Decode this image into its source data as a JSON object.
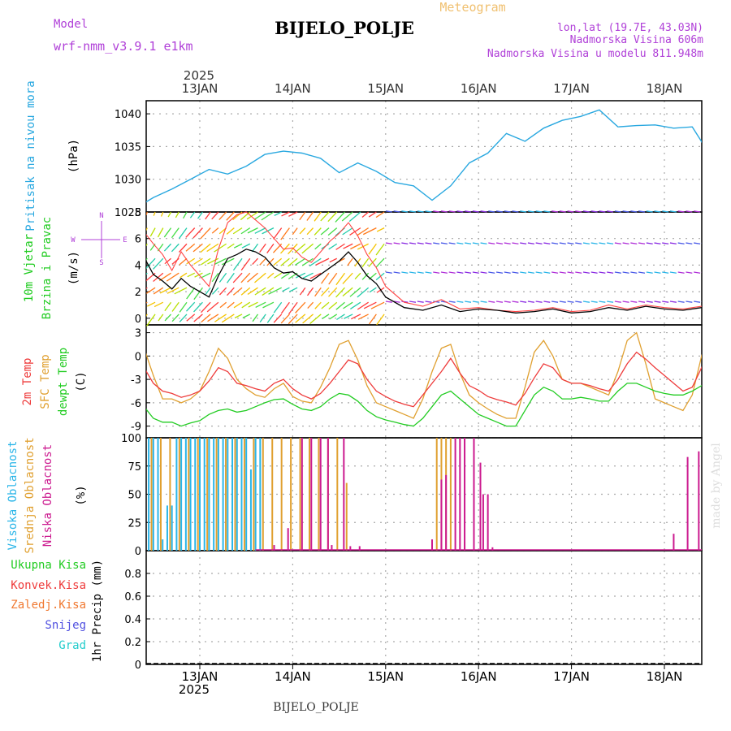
{
  "header": {
    "model_label": "Model",
    "model_name": "wrf-nmm_v3.9.1 e1km",
    "title": "BIJELO_POLJE",
    "product": "Meteogram",
    "lonlat": "lon,lat (19.7E, 43.03N)",
    "altitude": "Nadmorska Visina 606m",
    "model_altitude": "Nadmorska Visina u modelu 811.948m",
    "year_top": "2025",
    "year_bottom": "2025",
    "footer": "BIJELO_POLJE",
    "watermark": "made by Angel"
  },
  "colors": {
    "pressure": "#29a8e0",
    "t2m": "#ee3b3b",
    "sfc": "#e0a030",
    "dewpt": "#22cc22",
    "high_cloud": "#2ab5e8",
    "mid_cloud": "#e0a030",
    "low_cloud": "#cc1a8f",
    "wind_speed": "#000000",
    "wind_gust": "#ff4444",
    "purple": "#b040d8"
  },
  "chart_data": [
    {
      "type": "line",
      "panel": "pressure",
      "ylabel_lines": [
        "Pritisak na nivou mora",
        "(hPa)"
      ],
      "ylim": [
        1025,
        1042
      ],
      "yticks": [
        1025,
        1030,
        1035,
        1040
      ],
      "x_days": [
        "13JAN",
        "14JAN",
        "15JAN",
        "16JAN",
        "17JAN",
        "18JAN"
      ],
      "x": [
        -0.7,
        -0.5,
        -0.3,
        -0.1,
        0.1,
        0.3,
        0.5,
        0.7,
        0.9,
        1.1,
        1.3,
        1.5,
        1.7,
        1.9,
        2.1,
        2.3,
        2.5,
        2.7,
        2.9,
        3.1,
        3.3,
        3.5,
        3.7,
        3.9,
        4.1,
        4.3,
        4.5,
        4.7,
        4.9,
        5.1,
        5.3,
        5.5
      ],
      "series": [
        {
          "values": [
            1025.5,
            1027.2,
            1028.5,
            1030.0,
            1031.5,
            1030.8,
            1032.0,
            1033.8,
            1034.3,
            1034.0,
            1033.2,
            1031.0,
            1032.5,
            1031.2,
            1029.5,
            1029.0,
            1026.8,
            1029.0,
            1032.5,
            1034.0,
            1037.0,
            1035.8,
            1037.8,
            1039.0,
            1039.6,
            1040.6,
            1038.0,
            1038.2,
            1038.3,
            1037.8,
            1038.0,
            1033.5
          ]
        }
      ]
    },
    {
      "type": "line",
      "panel": "wind",
      "ylabel_lines": [
        "10m Vjetar",
        "Brzina i Pravac",
        "(m/s)"
      ],
      "compass": [
        "N",
        "W",
        "E",
        "S"
      ],
      "ylim": [
        -0.5,
        8
      ],
      "yticks": [
        0,
        2,
        4,
        6,
        8
      ],
      "x": [
        -0.7,
        -0.6,
        -0.5,
        -0.4,
        -0.3,
        -0.2,
        -0.1,
        0.0,
        0.1,
        0.2,
        0.3,
        0.4,
        0.5,
        0.6,
        0.7,
        0.8,
        0.9,
        1.0,
        1.1,
        1.2,
        1.3,
        1.4,
        1.5,
        1.6,
        1.7,
        1.8,
        1.9,
        2.0,
        2.2,
        2.4,
        2.6,
        2.8,
        3.0,
        3.2,
        3.4,
        3.6,
        3.8,
        4.0,
        4.2,
        4.4,
        4.6,
        4.8,
        5.0,
        5.2,
        5.4,
        5.5
      ],
      "series": [
        {
          "name": "speed",
          "values": [
            3.5,
            4.6,
            3.3,
            2.8,
            2.2,
            3.0,
            2.4,
            2.0,
            1.6,
            3.2,
            4.5,
            4.8,
            5.2,
            5.0,
            4.6,
            3.8,
            3.4,
            3.5,
            3.0,
            2.8,
            3.3,
            3.8,
            4.3,
            5.0,
            4.2,
            3.2,
            2.6,
            1.6,
            0.8,
            0.6,
            1.0,
            0.5,
            0.7,
            0.6,
            0.4,
            0.5,
            0.7,
            0.4,
            0.5,
            0.8,
            0.6,
            0.9,
            0.7,
            0.6,
            0.8,
            0.7
          ]
        },
        {
          "name": "gust",
          "values": [
            5.0,
            6.5,
            5.6,
            4.8,
            3.6,
            5.0,
            4.0,
            3.2,
            2.4,
            5.2,
            7.2,
            7.8,
            8.0,
            7.4,
            6.8,
            6.0,
            5.2,
            5.3,
            4.6,
            4.2,
            5.0,
            5.8,
            6.4,
            7.2,
            6.2,
            4.8,
            3.8,
            2.4,
            1.2,
            0.9,
            1.4,
            0.7,
            0.8,
            0.6,
            0.5,
            0.6,
            0.8,
            0.5,
            0.6,
            1.0,
            0.7,
            1.0,
            0.8,
            0.7,
            0.9,
            0.8
          ]
        }
      ]
    },
    {
      "type": "line",
      "panel": "temperature",
      "ylabel_lines": [
        "2m Temp",
        "SFC Temp",
        "dewpt Temp",
        "(C)"
      ],
      "ylim": [
        -10.5,
        4
      ],
      "yticks": [
        -9,
        -6,
        -3,
        0,
        3
      ],
      "x": [
        -0.7,
        -0.6,
        -0.5,
        -0.4,
        -0.3,
        -0.2,
        -0.1,
        0.0,
        0.1,
        0.2,
        0.3,
        0.4,
        0.5,
        0.6,
        0.7,
        0.8,
        0.9,
        1.0,
        1.1,
        1.2,
        1.3,
        1.4,
        1.5,
        1.6,
        1.7,
        1.8,
        1.9,
        2.0,
        2.1,
        2.2,
        2.3,
        2.4,
        2.5,
        2.6,
        2.7,
        2.8,
        2.9,
        3.0,
        3.1,
        3.2,
        3.3,
        3.4,
        3.5,
        3.6,
        3.7,
        3.8,
        3.9,
        4.0,
        4.1,
        4.2,
        4.3,
        4.4,
        4.5,
        4.6,
        4.7,
        4.8,
        4.9,
        5.0,
        5.1,
        5.2,
        5.3,
        5.4,
        5.5
      ],
      "series": [
        {
          "name": "2m Temp",
          "values": [
            -3.0,
            -1.5,
            -3.5,
            -4.5,
            -4.8,
            -5.3,
            -5.0,
            -4.5,
            -3.2,
            -1.5,
            -2.0,
            -3.5,
            -3.8,
            -4.2,
            -4.5,
            -3.5,
            -3.0,
            -4.2,
            -5.0,
            -5.5,
            -4.8,
            -3.5,
            -2.0,
            -0.5,
            -1.0,
            -3.0,
            -4.5,
            -5.2,
            -5.8,
            -6.2,
            -6.5,
            -5.0,
            -3.5,
            -2.0,
            -0.3,
            -2.2,
            -3.8,
            -4.4,
            -5.2,
            -5.6,
            -5.9,
            -6.3,
            -4.8,
            -2.8,
            -1.0,
            -1.5,
            -3.0,
            -3.5,
            -3.5,
            -3.8,
            -4.2,
            -4.5,
            -3.0,
            -1.0,
            0.5,
            -0.4,
            -1.5,
            -2.5,
            -3.5,
            -4.5,
            -4.0,
            -1.5,
            0.6
          ]
        },
        {
          "name": "SFC Temp",
          "values": [
            -2.5,
            1.0,
            -2.5,
            -5.5,
            -5.5,
            -6.0,
            -5.5,
            -4.5,
            -2.0,
            1.0,
            -0.3,
            -3.0,
            -4.2,
            -5.0,
            -5.3,
            -4.2,
            -3.5,
            -5.2,
            -5.8,
            -6.0,
            -4.0,
            -1.5,
            1.5,
            2.0,
            -0.5,
            -3.8,
            -6.0,
            -6.5,
            -7.0,
            -7.5,
            -8.0,
            -5.5,
            -2.0,
            1.0,
            1.5,
            -2.2,
            -5.0,
            -6.0,
            -6.8,
            -7.5,
            -8.0,
            -8.0,
            -4.0,
            0.5,
            2.0,
            0.0,
            -3.0,
            -3.5,
            -3.5,
            -4.0,
            -4.5,
            -5.0,
            -2.0,
            2.0,
            3.0,
            -1.0,
            -5.5,
            -6.0,
            -6.5,
            -7.0,
            -5.0,
            0.0,
            3.5
          ]
        },
        {
          "name": "dewpt Temp",
          "values": [
            -7.5,
            -6.5,
            -8.0,
            -8.5,
            -8.5,
            -9.0,
            -8.6,
            -8.3,
            -7.5,
            -7.0,
            -6.8,
            -7.2,
            -7.0,
            -6.5,
            -6.0,
            -5.6,
            -5.5,
            -6.2,
            -6.8,
            -7.0,
            -6.5,
            -5.5,
            -4.8,
            -5.0,
            -5.8,
            -7.0,
            -7.8,
            -8.2,
            -8.5,
            -8.8,
            -9.0,
            -8.0,
            -6.5,
            -5.0,
            -4.5,
            -5.5,
            -6.5,
            -7.5,
            -8.0,
            -8.5,
            -9.0,
            -9.0,
            -7.0,
            -5.0,
            -4.0,
            -4.5,
            -5.5,
            -5.5,
            -5.3,
            -5.5,
            -5.8,
            -5.8,
            -4.5,
            -3.5,
            -3.5,
            -4.0,
            -4.5,
            -4.8,
            -5.0,
            -5.0,
            -4.5,
            -3.8,
            -3.3
          ]
        }
      ]
    },
    {
      "type": "bar",
      "panel": "cloud",
      "ylabel_lines": [
        "Visoka Oblacnost",
        "Srednja Oblacnost",
        "Niska Oblacnost",
        "(%)"
      ],
      "ylim": [
        0,
        100
      ],
      "yticks": [
        0,
        25,
        50,
        75,
        100
      ],
      "high_x": [
        -0.65,
        -0.6,
        -0.55,
        -0.5,
        -0.45,
        -0.4,
        -0.35,
        -0.3,
        -0.25,
        -0.2,
        -0.15,
        -0.1,
        -0.05,
        0.0,
        0.05,
        0.1,
        0.15,
        0.2,
        0.25,
        0.3,
        0.35,
        0.4,
        0.45,
        0.5,
        0.55,
        0.6,
        0.65
      ],
      "high_v": [
        100,
        100,
        100,
        100,
        100,
        10,
        40,
        40,
        100,
        100,
        100,
        100,
        100,
        100,
        100,
        100,
        100,
        100,
        100,
        100,
        100,
        100,
        100,
        100,
        72,
        100,
        100
      ],
      "mid_x": [
        -0.62,
        -0.52,
        -0.42,
        -0.32,
        -0.22,
        -0.12,
        -0.02,
        0.08,
        0.18,
        0.28,
        0.38,
        0.48,
        0.58,
        0.68,
        0.78,
        0.88,
        0.98,
        1.08,
        1.18,
        1.28,
        1.38,
        1.48,
        1.58,
        2.55,
        2.6,
        2.65,
        2.7,
        2.85
      ],
      "mid_v": [
        100,
        100,
        100,
        100,
        100,
        100,
        100,
        100,
        100,
        100,
        100,
        100,
        100,
        100,
        100,
        100,
        100,
        100,
        100,
        100,
        100,
        100,
        60,
        100,
        100,
        100,
        100,
        8
      ],
      "low_x": [
        0.8,
        0.95,
        1.1,
        1.2,
        1.3,
        1.38,
        1.42,
        1.55,
        1.62,
        1.72,
        2.5,
        2.6,
        2.65,
        2.75,
        2.8,
        2.85,
        2.95,
        3.02,
        3.05,
        3.1,
        3.15,
        5.1,
        5.25,
        5.37,
        5.42
      ],
      "low_v": [
        5,
        20,
        100,
        100,
        100,
        100,
        5,
        100,
        4,
        4,
        10,
        63,
        67,
        100,
        100,
        100,
        100,
        78,
        50,
        50,
        3,
        15,
        83,
        88,
        45
      ]
    },
    {
      "type": "bar",
      "panel": "precip",
      "ylabel_lines": [
        "1hr Precip (mm)"
      ],
      "legend": [
        "Ukupna Kisa",
        "Konvek.Kisa",
        "Zaledj.Kisa",
        "Snijeg",
        "Grad"
      ],
      "ylim": [
        0,
        1
      ],
      "yticks": [
        0,
        0.2,
        0.4,
        0.6,
        0.8
      ],
      "x": [],
      "values": []
    }
  ],
  "x_tick_labels": [
    "13JAN",
    "14JAN",
    "15JAN",
    "16JAN",
    "17JAN",
    "18JAN"
  ]
}
